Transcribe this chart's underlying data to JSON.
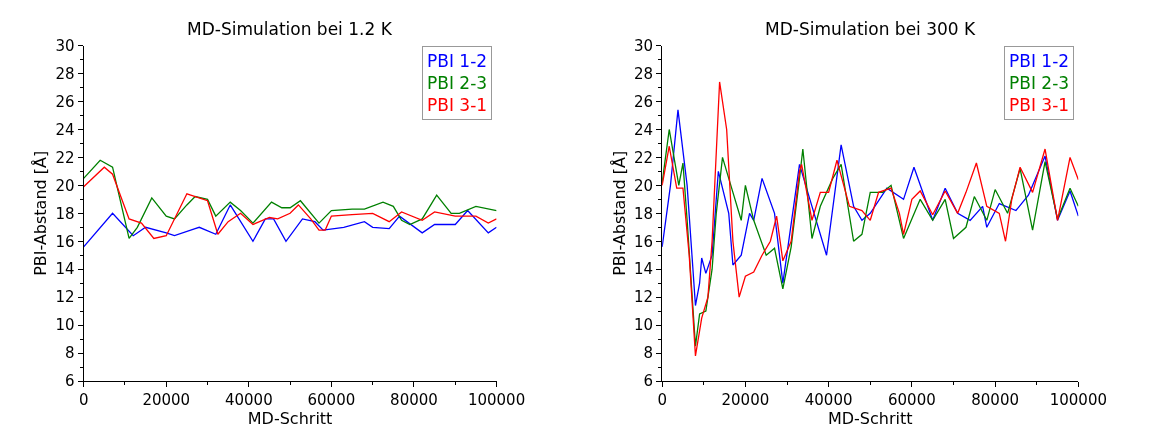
{
  "chart_data": [
    {
      "type": "line",
      "title": "MD-Simulation bei 1.2 K",
      "xlabel": "MD-Schritt",
      "ylabel": "PBI-Abstand [Å]",
      "xlim": [
        0,
        100000
      ],
      "xticks": [
        0,
        20000,
        40000,
        60000,
        80000,
        100000
      ],
      "ylim": [
        6,
        30
      ],
      "yticks": [
        6,
        8,
        10,
        12,
        14,
        16,
        18,
        20,
        22,
        24,
        26,
        28,
        30
      ],
      "grid": false,
      "legend": "top right",
      "marker": "none",
      "line_style": "solid",
      "series": [
        {
          "name": "PBI 1-2",
          "color": "#0000ff",
          "x": [
            0,
            7000,
            12000,
            15000,
            20000,
            22000,
            27000,
            28000,
            32000,
            35500,
            41000,
            44000,
            46000,
            49000,
            53000,
            56000,
            58000,
            63000,
            68000,
            70000,
            74000,
            76500,
            82000,
            85000,
            90000,
            93000,
            98000,
            100000
          ],
          "values": [
            15.6,
            18.0,
            16.4,
            17.0,
            16.6,
            16.4,
            16.9,
            17.0,
            16.5,
            18.6,
            16.0,
            17.6,
            17.6,
            16.0,
            17.6,
            17.4,
            16.8,
            17.0,
            17.4,
            17.0,
            16.9,
            17.8,
            16.6,
            17.2,
            17.2,
            18.2,
            16.6,
            17.0
          ]
        },
        {
          "name": "PBI 2-3",
          "color": "#008000",
          "x": [
            0,
            4000,
            7000,
            11000,
            13000,
            16500,
            20000,
            22000,
            25000,
            27000,
            30000,
            32000,
            35500,
            38000,
            41000,
            45500,
            48000,
            50000,
            52500,
            57000,
            60000,
            65000,
            68000,
            72500,
            75000,
            77000,
            79000,
            82000,
            85500,
            89000,
            91000,
            95000,
            100000
          ],
          "values": [
            20.5,
            21.8,
            21.3,
            16.2,
            17.0,
            19.1,
            17.8,
            17.6,
            18.6,
            19.2,
            19.0,
            17.8,
            18.8,
            18.2,
            17.3,
            18.8,
            18.4,
            18.4,
            18.9,
            17.3,
            18.2,
            18.3,
            18.3,
            18.8,
            18.5,
            17.5,
            17.2,
            17.6,
            19.3,
            18.0,
            18.0,
            18.5,
            18.2
          ]
        },
        {
          "name": "PBI 3-1",
          "color": "#ff0000",
          "x": [
            0,
            5000,
            7000,
            11000,
            14000,
            17000,
            20000,
            25000,
            30000,
            32500,
            35000,
            38000,
            41000,
            45000,
            47000,
            50000,
            52000,
            55000,
            57000,
            58500,
            60000,
            65000,
            70000,
            74000,
            77000,
            82000,
            85000,
            90000,
            95000,
            98000,
            100000
          ],
          "values": [
            19.9,
            21.3,
            20.8,
            17.6,
            17.3,
            16.2,
            16.4,
            19.4,
            18.9,
            16.5,
            17.4,
            18.0,
            17.2,
            17.7,
            17.6,
            18.0,
            18.6,
            17.6,
            16.8,
            16.8,
            17.8,
            17.9,
            18.0,
            17.4,
            18.1,
            17.5,
            18.1,
            17.8,
            17.8,
            17.3,
            17.6
          ]
        }
      ]
    },
    {
      "type": "line",
      "title": "MD-Simulation bei 300 K",
      "xlabel": "MD-Schritt",
      "ylabel": "PBI-Abstand [Å]",
      "xlim": [
        0,
        100000
      ],
      "xticks": [
        0,
        20000,
        40000,
        60000,
        80000,
        100000
      ],
      "ylim": [
        6,
        30
      ],
      "yticks": [
        6,
        8,
        10,
        12,
        14,
        16,
        18,
        20,
        22,
        24,
        26,
        28,
        30
      ],
      "grid": false,
      "legend": "top right",
      "marker": "none",
      "line_style": "solid",
      "series": [
        {
          "name": "PBI 1-2",
          "color": "#0000ff",
          "x": [
            0,
            2000,
            3800,
            6000,
            8000,
            9000,
            9500,
            10500,
            12000,
            13500,
            16000,
            17000,
            19000,
            21000,
            22000,
            24000,
            27000,
            29000,
            33000,
            36000,
            39500,
            43000,
            46000,
            48000,
            50000,
            54000,
            58000,
            60500,
            65000,
            68000,
            71000,
            74000,
            77000,
            78000,
            81000,
            85000,
            88000,
            92000,
            95000,
            98000,
            100000
          ],
          "values": [
            15.6,
            20.0,
            25.4,
            20.0,
            11.4,
            13.0,
            14.8,
            13.7,
            15.0,
            21.0,
            18.0,
            14.3,
            15.0,
            18.0,
            17.5,
            20.5,
            18.0,
            13.0,
            21.5,
            18.5,
            15.0,
            22.9,
            18.5,
            17.5,
            18.0,
            19.8,
            19.0,
            21.3,
            17.5,
            19.8,
            18.0,
            17.5,
            18.5,
            17.0,
            18.7,
            18.2,
            19.3,
            22.1,
            17.5,
            19.6,
            17.8
          ]
        },
        {
          "name": "PBI 2-3",
          "color": "#008000",
          "x": [
            0,
            1700,
            4000,
            5000,
            6000,
            8000,
            9000,
            10500,
            12000,
            13000,
            14500,
            17000,
            19000,
            20000,
            22000,
            25000,
            27000,
            29000,
            31000,
            33000,
            33800,
            36000,
            38000,
            41000,
            43000,
            46000,
            48000,
            50000,
            53000,
            55000,
            58000,
            62000,
            65000,
            68000,
            70000,
            73000,
            75000,
            78000,
            80000,
            83000,
            86000,
            89000,
            92000,
            95000,
            98000,
            100000
          ],
          "values": [
            20.2,
            24.0,
            20.0,
            21.6,
            17.5,
            8.5,
            10.8,
            11.0,
            14.0,
            18.0,
            22.0,
            19.5,
            17.5,
            20.0,
            17.5,
            15.0,
            15.5,
            12.6,
            15.6,
            20.5,
            22.6,
            16.2,
            18.5,
            20.5,
            21.5,
            16.0,
            16.5,
            19.5,
            19.5,
            20.0,
            16.2,
            19.0,
            17.5,
            19.0,
            16.2,
            17.0,
            19.2,
            17.5,
            19.7,
            18.0,
            21.2,
            16.8,
            21.7,
            17.6,
            19.8,
            18.5
          ]
        },
        {
          "name": "PBI 3-1",
          "color": "#ff0000",
          "x": [
            0,
            1700,
            3500,
            5000,
            6500,
            8000,
            9500,
            11000,
            12000,
            13800,
            15500,
            17000,
            18500,
            20000,
            22000,
            24000,
            26000,
            27500,
            29000,
            31000,
            33000,
            33500,
            36000,
            38000,
            40000,
            42000,
            45000,
            48000,
            50000,
            52000,
            55000,
            57000,
            58000,
            60000,
            62000,
            65000,
            68000,
            71000,
            73000,
            75500,
            78000,
            81000,
            82500,
            84000,
            86000,
            89000,
            92000,
            95000,
            98000,
            100000
          ],
          "values": [
            20.0,
            22.8,
            19.8,
            19.8,
            15.0,
            7.8,
            10.5,
            12.0,
            16.0,
            27.4,
            24.0,
            16.0,
            12.0,
            13.5,
            13.8,
            15.0,
            16.0,
            17.8,
            14.6,
            16.0,
            21.0,
            21.5,
            17.5,
            19.5,
            19.5,
            21.8,
            18.5,
            18.2,
            17.5,
            19.5,
            19.8,
            18.0,
            16.5,
            19.0,
            19.6,
            17.9,
            19.6,
            18.0,
            19.5,
            21.6,
            18.5,
            18.0,
            16.0,
            19.0,
            21.3,
            19.5,
            22.6,
            17.5,
            22.0,
            20.4
          ]
        }
      ]
    }
  ]
}
